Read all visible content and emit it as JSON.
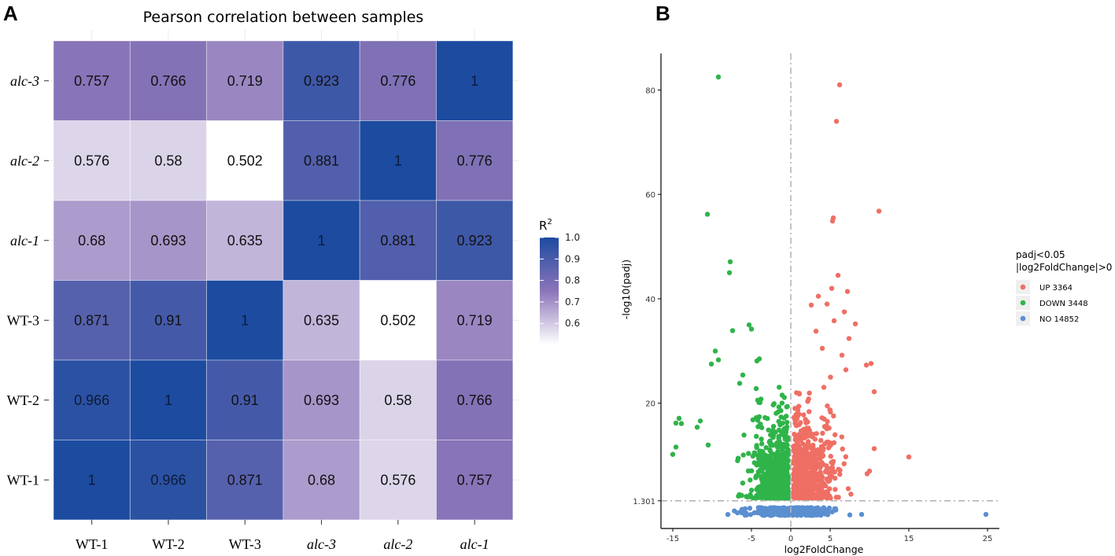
{
  "panel_labels": {
    "a": "A",
    "b": "B"
  },
  "colors": {
    "low": "#ffffff",
    "mid": "#8b75b9",
    "high": "#1c4ba0",
    "up": "#ef6f64",
    "down": "#2fb449",
    "no": "#5a8fd0",
    "threshold": "#b5b5b5"
  },
  "chart_data": [
    {
      "type": "heatmap",
      "title": "Pearson correlation between samples",
      "colorbar_title": "R",
      "colorbar_title_sup": "2",
      "colorbar_range": [
        0.502,
        1.0
      ],
      "colorbar_ticks": [
        "0.6",
        "0.7",
        "0.8",
        "0.9",
        "1.0"
      ],
      "colorbar_tick_values": [
        0.6,
        0.7,
        0.8,
        0.9,
        1.0
      ],
      "x_labels": [
        "WT-1",
        "WT-2",
        "WT-3",
        "alc-3",
        "alc-2",
        "alc-1"
      ],
      "y_labels": [
        "alc-3",
        "alc-2",
        "alc-1",
        "WT-3",
        "WT-2",
        "WT-1"
      ],
      "italic_prefix": "alc",
      "values": [
        [
          0.757,
          0.766,
          0.719,
          0.923,
          0.776,
          1
        ],
        [
          0.576,
          0.58,
          0.502,
          0.881,
          1,
          0.776
        ],
        [
          0.68,
          0.693,
          0.635,
          1,
          0.881,
          0.923
        ],
        [
          0.871,
          0.91,
          1,
          0.635,
          0.502,
          0.719
        ],
        [
          0.966,
          1,
          0.91,
          0.693,
          0.58,
          0.766
        ],
        [
          1,
          0.966,
          0.871,
          0.68,
          0.576,
          0.757
        ]
      ]
    },
    {
      "type": "scatter",
      "title": "",
      "xlabel": "log2FoldChange",
      "ylabel": "-log10(padj)",
      "xlim": [
        -16.5,
        26.5
      ],
      "ylim": [
        -4,
        87
      ],
      "x_ticks": [
        -15,
        -5,
        0,
        5,
        15,
        25
      ],
      "x_tick_labels": [
        "-15",
        "-5",
        "0",
        "5",
        "15",
        "25"
      ],
      "y_ticks": [
        1.301,
        20,
        40,
        60,
        80
      ],
      "y_tick_labels": [
        "1.301",
        "20",
        "40",
        "60",
        "80"
      ],
      "thresholds": {
        "x": 0,
        "y": 1.301
      },
      "legend": {
        "title_line1": "padj<0.05",
        "title_line2": "|log2FoldChange|>0",
        "items": [
          {
            "label": "UP 3364",
            "group": "up"
          },
          {
            "label": "DOWN 3448",
            "group": "down"
          },
          {
            "label": "NO 14852",
            "group": "no"
          }
        ]
      },
      "counts": {
        "up": 3364,
        "down": 3448,
        "no": 14852
      },
      "highlight_points": {
        "up": [
          [
            6.2,
            81
          ],
          [
            5.8,
            74
          ],
          [
            11.2,
            56.8
          ],
          [
            5.4,
            55.5
          ],
          [
            5.3,
            54.9
          ],
          [
            6.0,
            44.5
          ],
          [
            5.2,
            42
          ],
          [
            7.2,
            41.4
          ],
          [
            3.5,
            40.5
          ],
          [
            4.6,
            39
          ],
          [
            2.6,
            38.8
          ],
          [
            6.8,
            37.5
          ],
          [
            8.2,
            35.2
          ],
          [
            5.5,
            35.8
          ],
          [
            7.4,
            32.4
          ],
          [
            10.2,
            27.6
          ],
          [
            9.6,
            27.3
          ],
          [
            7.0,
            26.4
          ],
          [
            10.6,
            22.2
          ],
          [
            10.6,
            11.3
          ],
          [
            15.0,
            9.7
          ],
          [
            4.0,
            30.5
          ],
          [
            3.2,
            33.8
          ],
          [
            6.5,
            29.2
          ]
        ],
        "down": [
          [
            -9.2,
            82.5
          ],
          [
            -10.6,
            56.2
          ],
          [
            -7.7,
            47.1
          ],
          [
            -7.8,
            45
          ],
          [
            -5.3,
            35
          ],
          [
            -5.0,
            34.2
          ],
          [
            -7.4,
            33.9
          ],
          [
            -9.6,
            30
          ],
          [
            -9.2,
            28.3
          ],
          [
            -4.0,
            28.5
          ],
          [
            -4.3,
            28.1
          ],
          [
            -10.1,
            27.5
          ],
          [
            -6.1,
            25.4
          ],
          [
            -6.5,
            23.8
          ],
          [
            -14.2,
            17.1
          ],
          [
            -14.6,
            16.2
          ],
          [
            -13.9,
            16.1
          ],
          [
            -14.6,
            11.6
          ],
          [
            -15.0,
            10.2
          ],
          [
            -11.5,
            16.6
          ],
          [
            -11.9,
            15.4
          ],
          [
            -10.5,
            12
          ]
        ],
        "no": [
          [
            24.8,
            -1.3
          ],
          [
            -2.3,
            -1.2
          ],
          [
            7.5,
            -1.4
          ],
          [
            9.0,
            -1.3
          ]
        ]
      }
    }
  ]
}
